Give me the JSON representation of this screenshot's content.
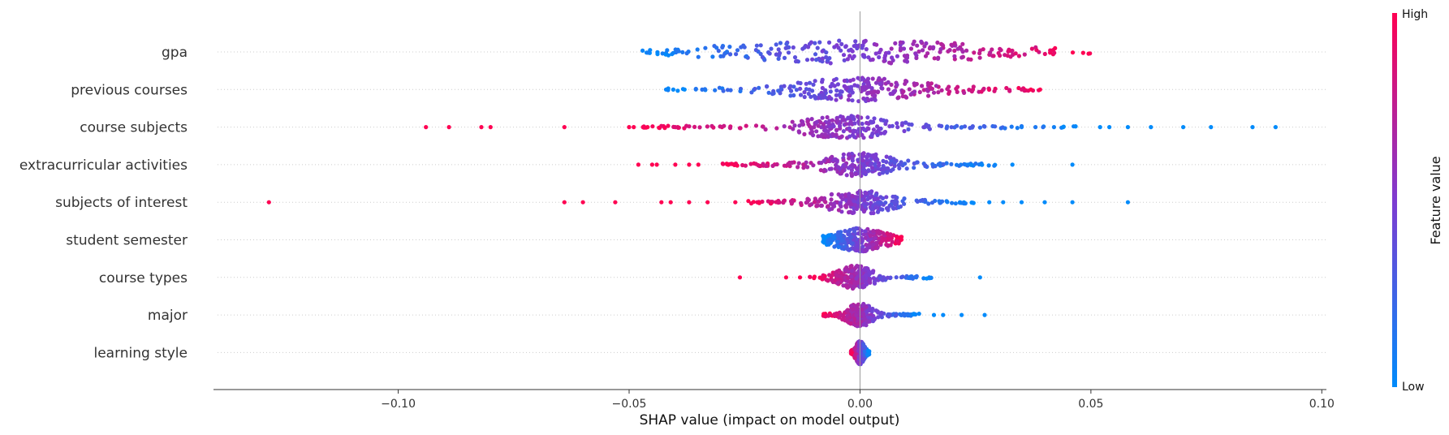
{
  "chart_data": {
    "type": "scatter",
    "subtype": "shap-beeswarm",
    "title": "",
    "xlabel": "SHAP value (impact on model output)",
    "ylabel": "",
    "xlim": [
      -0.14,
      0.101
    ],
    "xticks": [
      -0.1,
      -0.05,
      0.0,
      0.05,
      0.1
    ],
    "xtick_labels": [
      "−0.10",
      "−0.05",
      "0.00",
      "0.05",
      "0.10"
    ],
    "zero_line": 0.0,
    "grid": false,
    "colorbar": {
      "title": "Feature value",
      "high_label": "High",
      "low_label": "Low",
      "low_color": "#008bfb",
      "mid_color": "#7e3bd1",
      "high_color": "#ff0052",
      "placement": "right"
    },
    "features": [
      {
        "name": "gpa",
        "range": [
          -0.048,
          0.05
        ],
        "density_center": 0.0,
        "density_width": 0.03,
        "outliers": [],
        "color_dir": "positive"
      },
      {
        "name": "previous courses",
        "range": [
          -0.043,
          0.04
        ],
        "density_center": 0.0,
        "density_width": 0.015,
        "outliers": [
          -0.042,
          -0.038,
          0.035,
          0.037,
          0.039
        ],
        "color_dir": "positive"
      },
      {
        "name": "course subjects",
        "range": [
          -0.047,
          0.047
        ],
        "density_center": -0.003,
        "density_width": 0.01,
        "outliers": [
          -0.094,
          -0.089,
          -0.082,
          -0.08,
          -0.064,
          -0.05,
          -0.049,
          -0.047,
          -0.046,
          -0.04,
          0.035,
          0.038,
          0.042,
          0.044,
          0.052,
          0.054,
          0.058,
          0.063,
          0.07,
          0.076,
          0.085,
          0.09
        ],
        "color_dir": "negative"
      },
      {
        "name": "extracurricular activities",
        "range": [
          -0.03,
          0.03
        ],
        "density_center": 0.0,
        "density_width": 0.008,
        "outliers": [
          -0.048,
          -0.045,
          -0.044,
          -0.04,
          -0.037,
          -0.035,
          0.033,
          0.046
        ],
        "color_dir": "negative"
      },
      {
        "name": "subjects of interest",
        "range": [
          -0.025,
          0.025
        ],
        "density_center": 0.0,
        "density_width": 0.008,
        "outliers": [
          -0.128,
          -0.064,
          -0.06,
          -0.053,
          -0.043,
          -0.041,
          -0.037,
          -0.033,
          -0.027,
          0.028,
          0.031,
          0.035,
          0.04,
          0.046,
          0.058
        ],
        "color_dir": "negative"
      },
      {
        "name": "student semester",
        "range": [
          -0.008,
          0.009
        ],
        "density_center": 0.0,
        "density_width": 0.006,
        "outliers": [],
        "color_dir": "positive"
      },
      {
        "name": "course types",
        "range": [
          -0.011,
          0.016
        ],
        "density_center": -0.001,
        "density_width": 0.004,
        "outliers": [
          -0.026,
          -0.016,
          -0.013,
          0.026
        ],
        "color_dir": "negative"
      },
      {
        "name": "major",
        "range": [
          -0.008,
          0.013
        ],
        "density_center": 0.0,
        "density_width": 0.003,
        "outliers": [
          0.016,
          0.018,
          0.022,
          0.027
        ],
        "color_dir": "negative"
      },
      {
        "name": "learning style",
        "range": [
          -0.002,
          0.002
        ],
        "density_center": 0.0,
        "density_width": 0.001,
        "outliers": [],
        "color_dir": "negative"
      }
    ]
  }
}
